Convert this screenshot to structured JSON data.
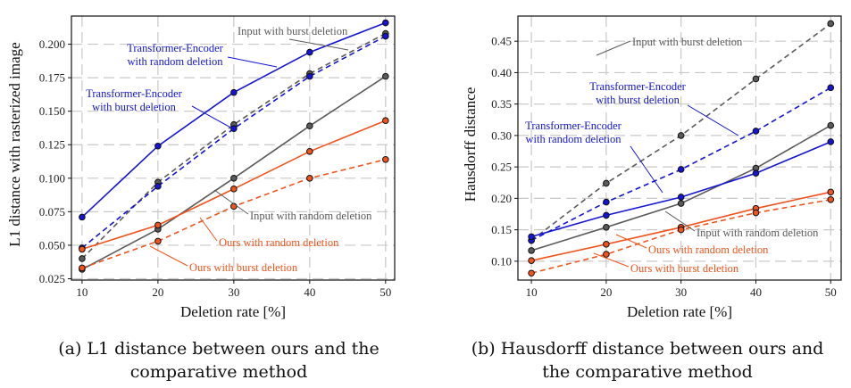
{
  "colors": {
    "gray": "#5a5a5a",
    "blue": "#1414d2",
    "orange": "#f0541e",
    "grid": "#c8c8c8"
  },
  "chart_data": [
    {
      "type": "line",
      "x": [
        10,
        20,
        30,
        40,
        50
      ],
      "xlabel": "Deletion rate [%]",
      "ylabel": "L1 distance with rasterized image",
      "xticks": [
        "10",
        "20",
        "30",
        "40",
        "50"
      ],
      "yticks": [
        "0.025",
        "0.050",
        "0.075",
        "0.100",
        "0.125",
        "0.150",
        "0.175",
        "0.200"
      ],
      "ylim": [
        0.024,
        0.221
      ],
      "grid": true,
      "series": [
        {
          "name": "Input with burst deletion",
          "color": "gray",
          "style": "dashed",
          "values": [
            0.04,
            0.097,
            0.14,
            0.178,
            0.208
          ]
        },
        {
          "name": "Input with random deletion",
          "color": "gray",
          "style": "solid",
          "values": [
            0.032,
            0.062,
            0.1,
            0.139,
            0.176
          ]
        },
        {
          "name": "Transformer-Encoder with random deletion",
          "color": "blue",
          "style": "solid",
          "values": [
            0.071,
            0.124,
            0.164,
            0.194,
            0.216
          ]
        },
        {
          "name": "Transformer-Encoder with burst deletion",
          "color": "blue",
          "style": "dashed",
          "values": [
            0.048,
            0.094,
            0.137,
            0.176,
            0.206
          ]
        },
        {
          "name": "Ours with random deletion",
          "color": "orange",
          "style": "solid",
          "values": [
            0.047,
            0.065,
            0.092,
            0.12,
            0.143
          ]
        },
        {
          "name": "Ours with burst deletion",
          "color": "orange",
          "style": "dashed",
          "values": [
            0.033,
            0.053,
            0.079,
            0.1,
            0.114
          ]
        }
      ],
      "caption": "(a) L1 distance between ours and the\ncomparative method"
    },
    {
      "type": "line",
      "x": [
        10,
        20,
        30,
        40,
        50
      ],
      "xlabel": "Deletion rate [%]",
      "ylabel": "Hausdorff distance",
      "xticks": [
        "10",
        "20",
        "30",
        "40",
        "50"
      ],
      "yticks": [
        "0.10",
        "0.15",
        "0.20",
        "0.25",
        "0.30",
        "0.35",
        "0.40",
        "0.45"
      ],
      "ylim": [
        0.07,
        0.49
      ],
      "grid": true,
      "series": [
        {
          "name": "Input with burst deletion",
          "color": "gray",
          "style": "dashed",
          "values": [
            0.133,
            0.224,
            0.3,
            0.39,
            0.478
          ]
        },
        {
          "name": "Input with random deletion",
          "color": "gray",
          "style": "solid",
          "values": [
            0.117,
            0.154,
            0.192,
            0.248,
            0.316
          ]
        },
        {
          "name": "Transformer-Encoder with burst deletion",
          "color": "blue",
          "style": "dashed",
          "values": [
            0.133,
            0.194,
            0.246,
            0.307,
            0.376
          ]
        },
        {
          "name": "Transformer-Encoder with random deletion",
          "color": "blue",
          "style": "solid",
          "values": [
            0.139,
            0.173,
            0.202,
            0.24,
            0.29
          ]
        },
        {
          "name": "Ours with random deletion",
          "color": "orange",
          "style": "solid",
          "values": [
            0.101,
            0.127,
            0.154,
            0.184,
            0.21
          ]
        },
        {
          "name": "Ours with burst deletion",
          "color": "orange",
          "style": "dashed",
          "values": [
            0.081,
            0.111,
            0.15,
            0.177,
            0.198
          ]
        }
      ],
      "caption": "(b) Hausdorff distance between ours and\nthe comparative method"
    }
  ]
}
